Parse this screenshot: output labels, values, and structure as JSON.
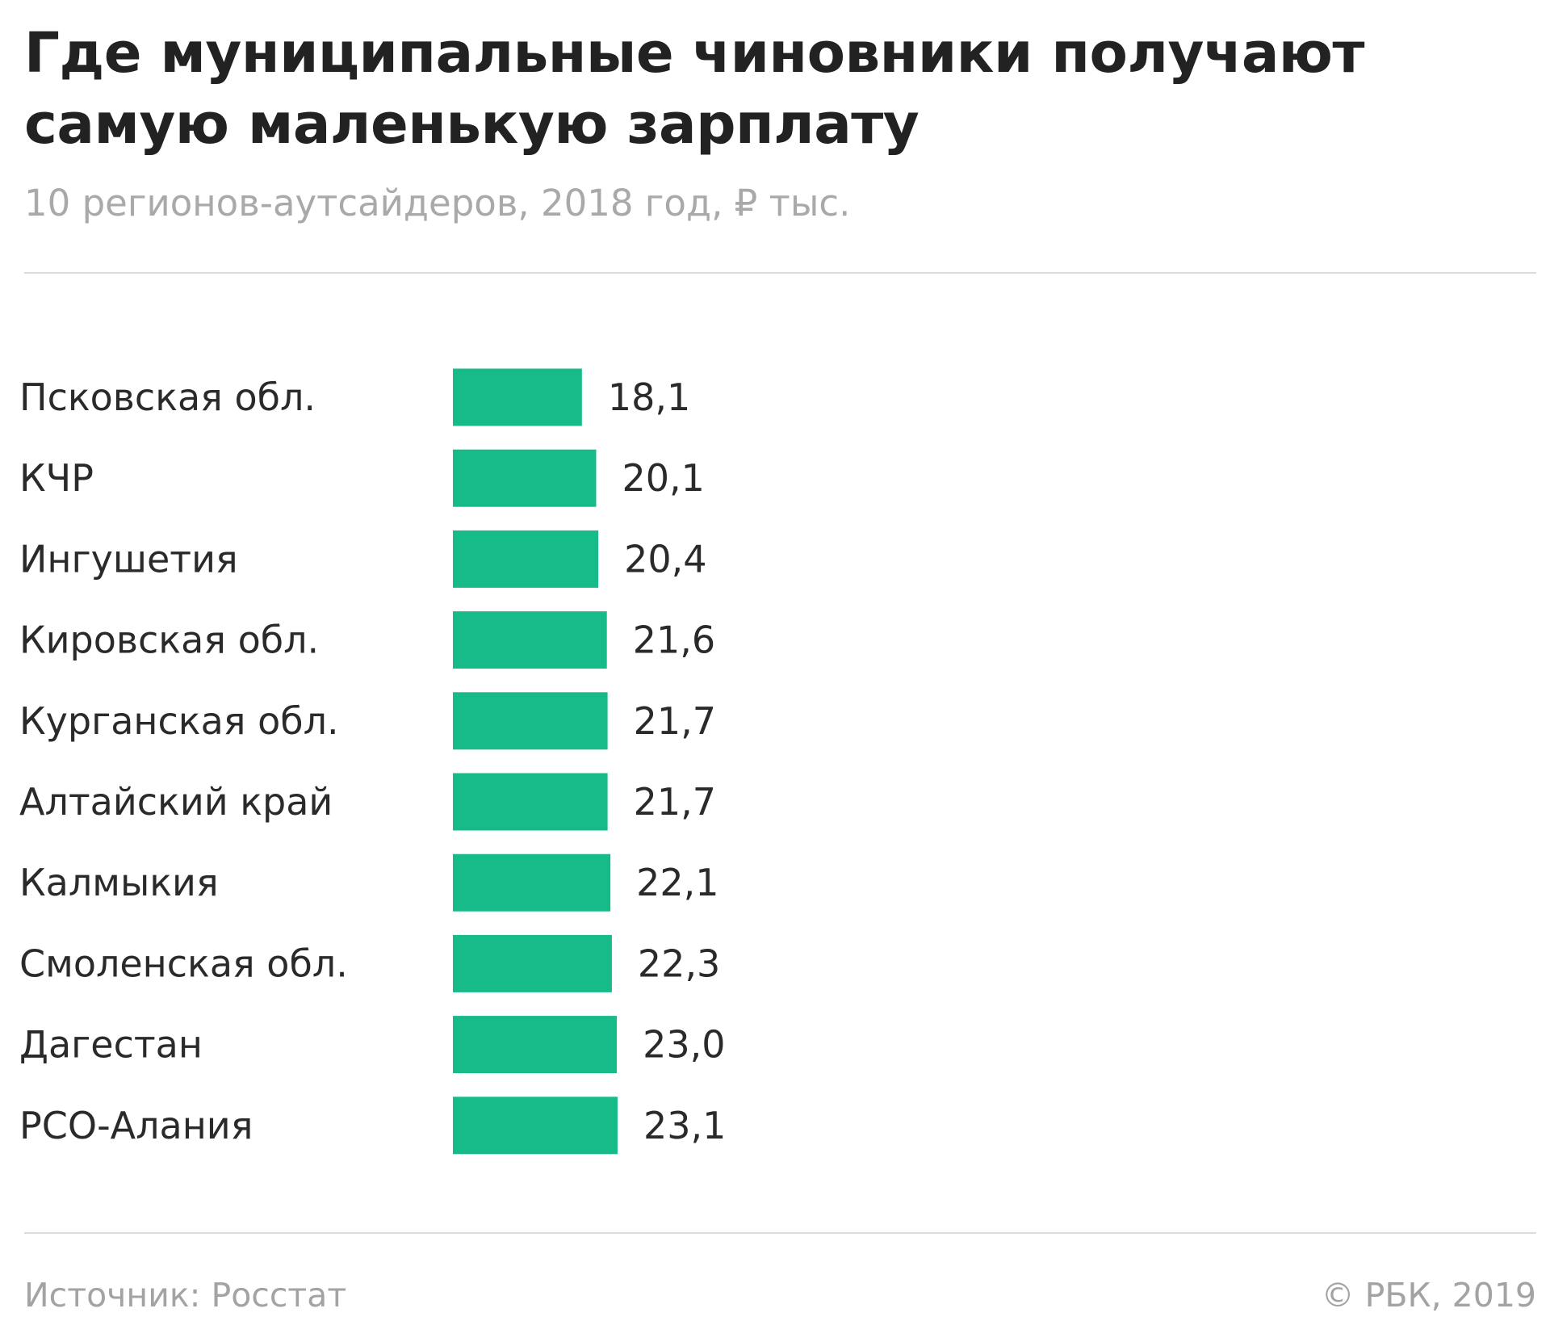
{
  "header": {
    "title": "Где муниципальные чиновники получают самую маленькую зарплату",
    "subtitle": "10 регионов-аутсайдеров, 2018 год, ₽ тыс."
  },
  "footer": {
    "source": "Источник: Росстат",
    "copyright": "© РБК, 2019"
  },
  "colors": {
    "bar": "#17bb8a",
    "text": "#222222",
    "muted": "#a9a9a9"
  },
  "chart_data": {
    "type": "bar",
    "orientation": "horizontal",
    "title": "Где муниципальные чиновники получают самую маленькую зарплату",
    "subtitle": "10 регионов-аутсайдеров, 2018 год, ₽ тыс.",
    "categories": [
      "Псковская обл.",
      "КЧР",
      "Ингушетия",
      "Кировская обл.",
      "Курганская обл.",
      "Алтайский край",
      "Калмыкия",
      "Смоленская обл.",
      "Дагестан",
      "РСО-Алания"
    ],
    "values": [
      18.1,
      20.1,
      20.4,
      21.6,
      21.7,
      21.7,
      22.1,
      22.3,
      23.0,
      23.1
    ],
    "value_labels": [
      "18,1",
      "20,1",
      "20,4",
      "21,6",
      "21,7",
      "21,7",
      "22,1",
      "22,3",
      "23,0",
      "23,1"
    ],
    "grid": false,
    "legend": "none"
  }
}
